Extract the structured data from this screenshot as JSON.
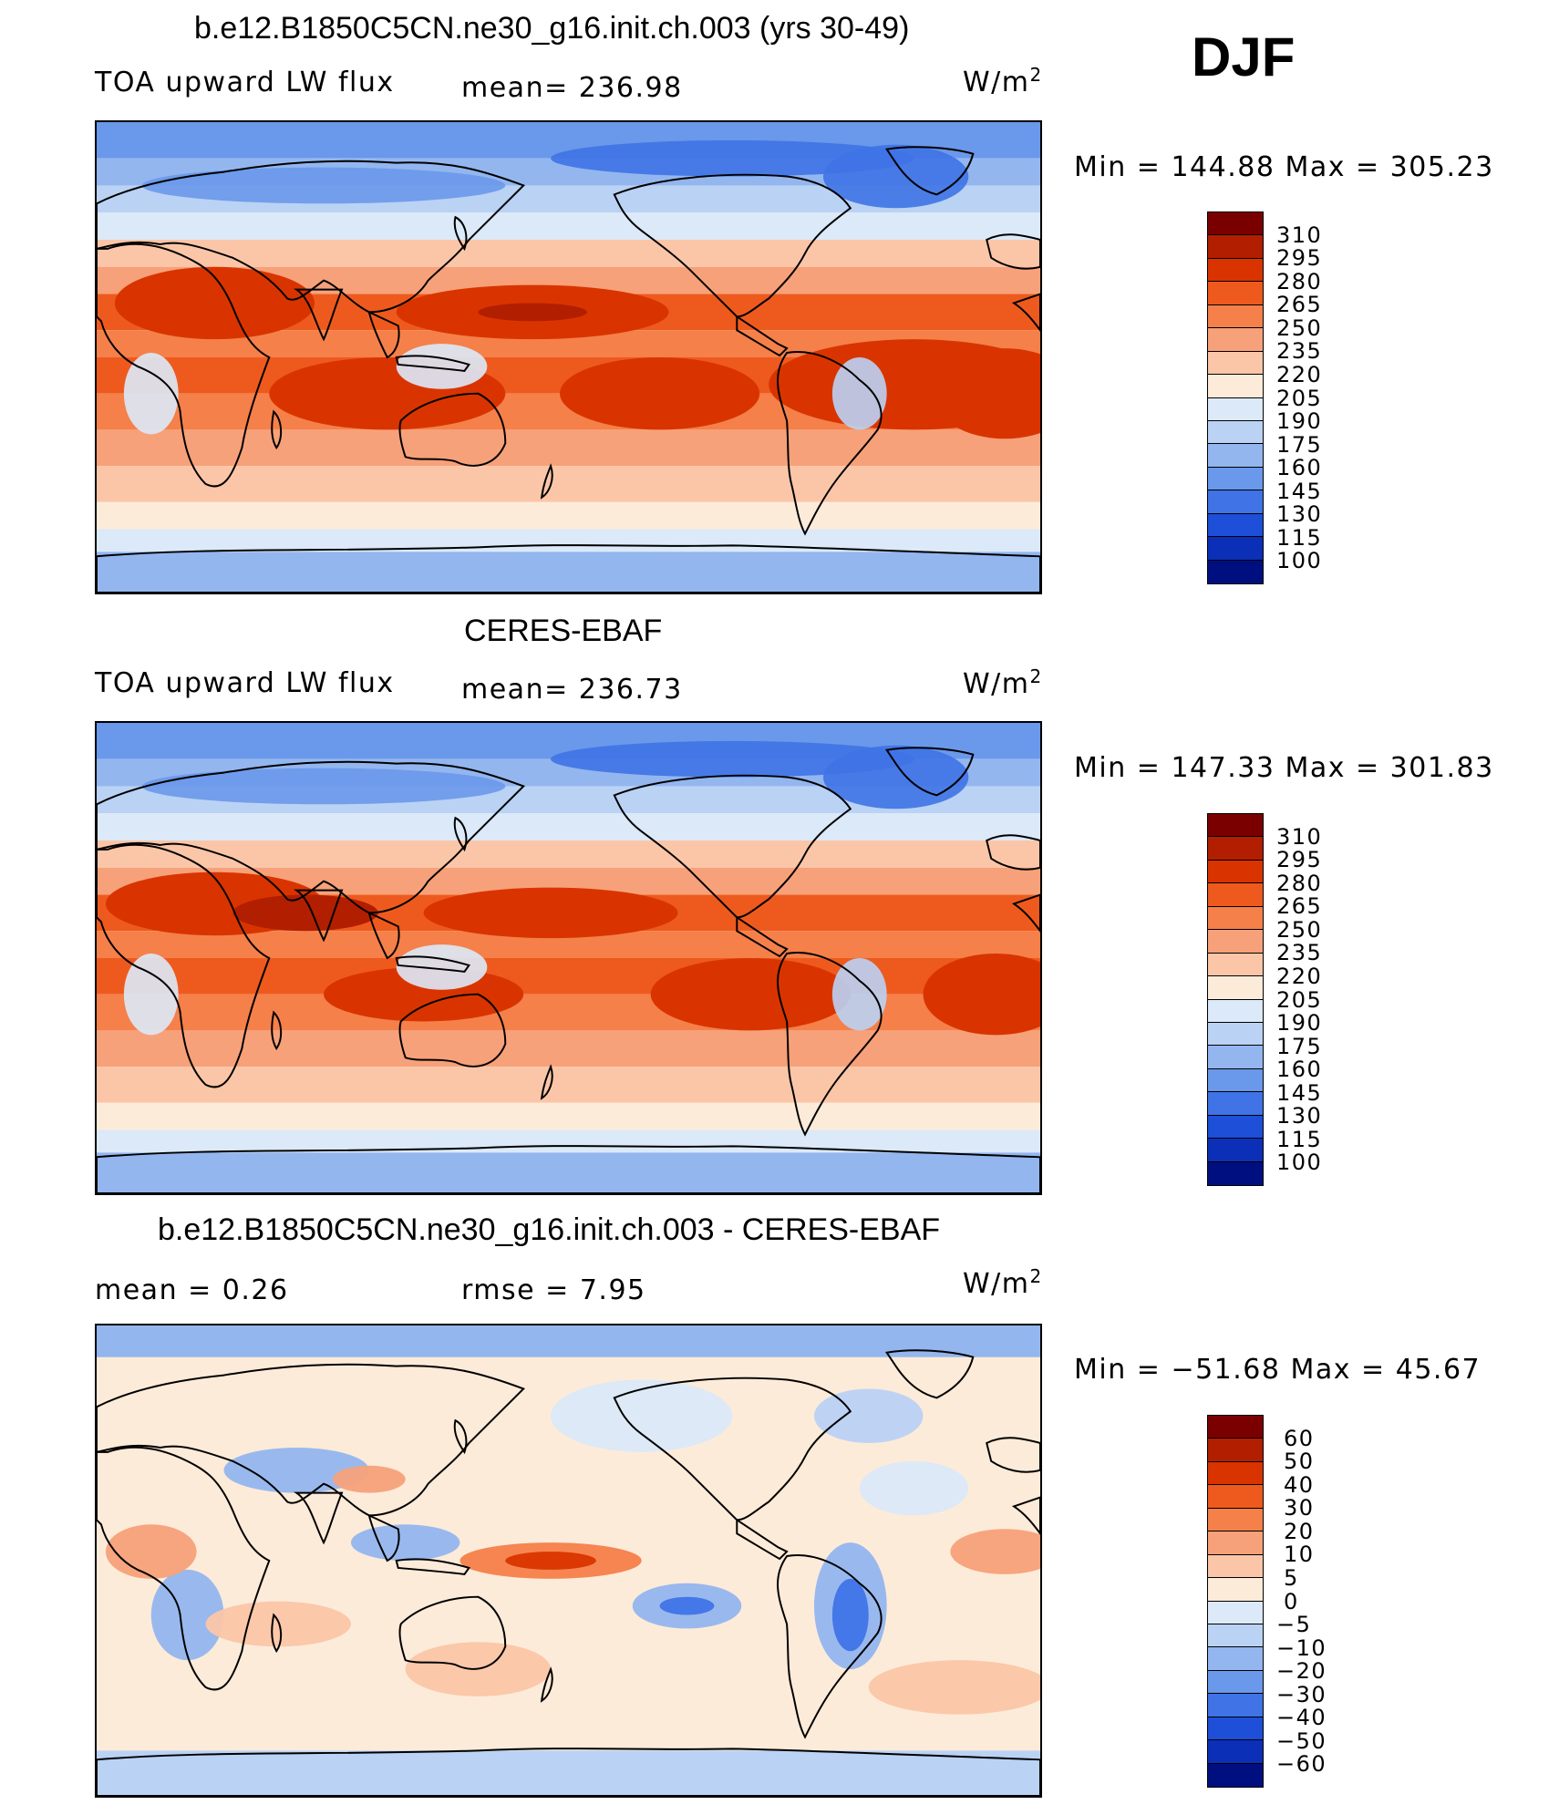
{
  "season": "DJF",
  "panels": [
    {
      "title": "b.e12.B1850C5CN.ne30_g16.init.ch.003 (yrs 30-49)",
      "left_label": "TOA upward LW flux",
      "center_label": "mean=  236.98",
      "units": "W/m",
      "units_sup": "2",
      "stats": "Min  =  144.88  Max  =  305.23",
      "colorbar_labels": [
        "310",
        "295",
        "280",
        "265",
        "250",
        "235",
        "220",
        "205",
        "190",
        "175",
        "160",
        "145",
        "130",
        "115",
        "100"
      ]
    },
    {
      "title": "CERES-EBAF",
      "left_label": "TOA upward LW flux",
      "center_label": "mean=  236.73",
      "units": "W/m",
      "units_sup": "2",
      "stats": "Min  =  147.33  Max  =  301.83",
      "colorbar_labels": [
        "310",
        "295",
        "280",
        "265",
        "250",
        "235",
        "220",
        "205",
        "190",
        "175",
        "160",
        "145",
        "130",
        "115",
        "100"
      ]
    },
    {
      "title": "b.e12.B1850C5CN.ne30_g16.init.ch.003 - CERES-EBAF",
      "left_label": "mean  =      0.26",
      "center_label": "rmse  =      7.95",
      "units": "W/m",
      "units_sup": "2",
      "stats": "Min  =  −51.68  Max  =     45.67",
      "colorbar_labels": [
        "60",
        "50",
        "40",
        "30",
        "20",
        "10",
        "5",
        "0",
        "−5",
        "−10",
        "−20",
        "−30",
        "−40",
        "−50",
        "−60"
      ]
    }
  ],
  "colors": {
    "palette": [
      "#7a0000",
      "#b21e00",
      "#d93400",
      "#ee5a1e",
      "#f5804a",
      "#f7a17a",
      "#fbc6a8",
      "#fdebd9",
      "#dbe9f8",
      "#bad2f4",
      "#93b6ef",
      "#6a98ea",
      "#3f73e6",
      "#1e4fd8",
      "#0c2fb8",
      "#000f80"
    ]
  }
}
